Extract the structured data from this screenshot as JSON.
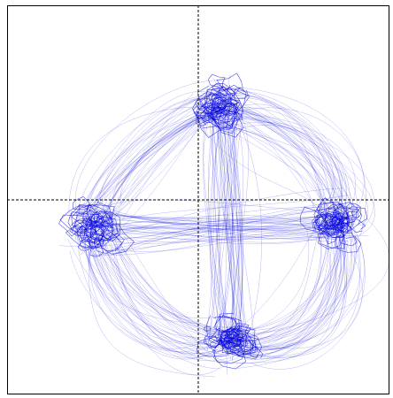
{
  "chart_data": {
    "type": "scatter",
    "title": "",
    "xlabel": "",
    "ylabel": "",
    "xlim": [
      -1,
      1
    ],
    "ylim": [
      -1,
      1
    ],
    "grid": false,
    "legend": "none",
    "axis_lines": {
      "x": 0,
      "y": 0,
      "style": "dashed"
    },
    "colors": {
      "trace": "#0000dd",
      "frame": "#000000",
      "axes": "#000000",
      "background": "#ffffff"
    },
    "clusters": [
      {
        "name": "top",
        "x": 0.12,
        "y": 0.48
      },
      {
        "name": "right",
        "x": 0.72,
        "y": -0.12
      },
      {
        "name": "bottom",
        "x": 0.17,
        "y": -0.74
      },
      {
        "name": "left",
        "x": -0.55,
        "y": -0.14
      }
    ],
    "cluster_spread": 0.06,
    "trajectory_segments": 260
  }
}
